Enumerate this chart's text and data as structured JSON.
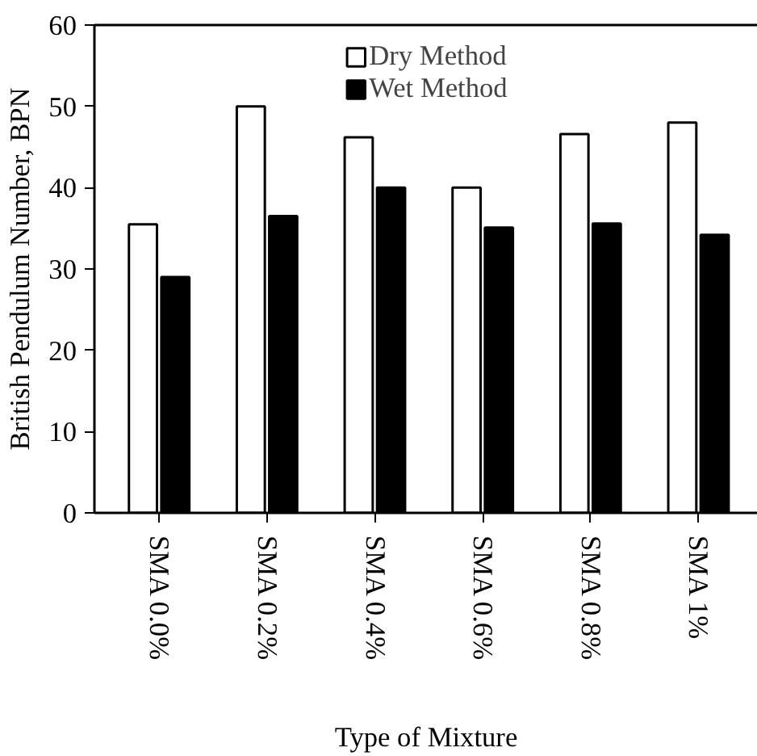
{
  "chart_data": {
    "type": "bar",
    "xlabel": "Type of Mixture",
    "ylabel": "British Pendulum Number, BPN",
    "categories": [
      "SMA  0.0%",
      "SMA  0.2%",
      "SMA  0.4%",
      "SMA  0.6%",
      "SMA  0.8%",
      "SMA  1%"
    ],
    "series": [
      {
        "name": "Dry Method",
        "color": "#ffffff",
        "values": [
          35.5,
          50,
          46.2,
          40,
          46.6,
          48
        ]
      },
      {
        "name": "Wet Method",
        "color": "#000000",
        "values": [
          29,
          36.5,
          40,
          35.1,
          35.6,
          34.2
        ]
      }
    ],
    "ylim": [
      0,
      60
    ],
    "yticks": [
      0,
      10,
      20,
      30,
      40,
      50,
      60
    ],
    "grid": false,
    "legend": "top"
  }
}
